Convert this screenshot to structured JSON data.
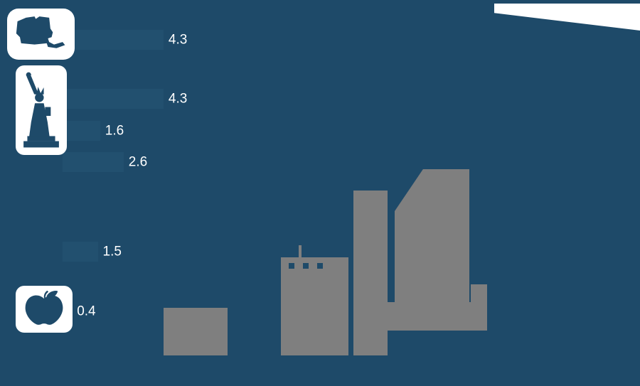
{
  "colors": {
    "background": "#1E4A69",
    "bar": "#22506F",
    "skyline_gray": "#7F7F7F",
    "tile_white": "#FFFFFF",
    "value_label": "#FFFFFF"
  },
  "chart_data": {
    "type": "bar",
    "orientation": "horizontal",
    "values": [
      4.3,
      4.3,
      1.6,
      2.6,
      1.5,
      0.4
    ],
    "value_labels": [
      "4.3",
      "4.3",
      "1.6",
      "2.6",
      "1.5",
      "0.4"
    ],
    "categories": [
      "",
      "",
      "",
      "",
      "",
      ""
    ],
    "title": "",
    "xlabel": "",
    "ylabel": "",
    "xlim": [
      0,
      5
    ],
    "grid": false,
    "legend": "none",
    "bar_color": "#22506F",
    "label_color": "#FFFFFF"
  },
  "icons": {
    "state": "ny-state-icon",
    "statue": "statue-of-liberty-icon",
    "apple": "big-apple-icon"
  },
  "decorations": {
    "ribbon_color": "#FFFFFF",
    "skyline_color": "#7F7F7F"
  }
}
